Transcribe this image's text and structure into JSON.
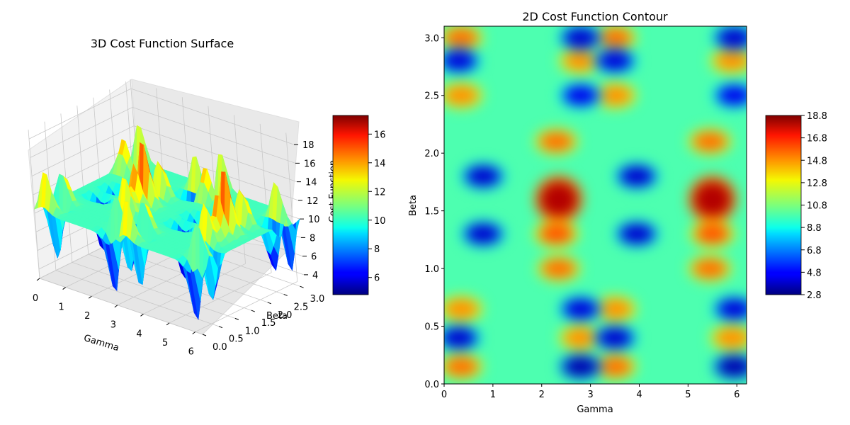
{
  "chart_data": [
    {
      "type": "surface3d",
      "title": "3D Cost Function Surface",
      "xlabel": "Gamma",
      "ylabel": "Beta",
      "zlabel": "Cost Function",
      "xlim": [
        0,
        6.28
      ],
      "ylim": [
        0,
        3.14
      ],
      "zlim": [
        3,
        19
      ],
      "x_ticks": [
        "0",
        "1",
        "2",
        "3",
        "4",
        "5",
        "6"
      ],
      "y_ticks": [
        "0.0",
        "0.5",
        "1.0",
        "1.5",
        "2.0",
        "2.5",
        "3.0"
      ],
      "z_ticks": [
        "4",
        "6",
        "8",
        "10",
        "12",
        "14",
        "16",
        "18"
      ],
      "colormap": "jet",
      "colorbar": {
        "min": 4.8,
        "max": 17.3,
        "ticks": [
          "6",
          "8",
          "10",
          "12",
          "14",
          "16"
        ]
      }
    },
    {
      "type": "heatmap",
      "title": "2D Cost Function Contour",
      "xlabel": "Gamma",
      "ylabel": "Beta",
      "xlim": [
        0,
        6.2
      ],
      "ylim": [
        0,
        3.1
      ],
      "x_ticks": [
        "0",
        "1",
        "2",
        "3",
        "4",
        "5",
        "6"
      ],
      "y_ticks": [
        "0.0",
        "0.5",
        "1.0",
        "1.5",
        "2.0",
        "2.5",
        "3.0"
      ],
      "colormap": "jet",
      "colorbar": {
        "min": 2.8,
        "max": 18.8,
        "ticks": [
          "2.8",
          "4.8",
          "6.8",
          "8.8",
          "10.8",
          "12.8",
          "14.8",
          "16.8",
          "18.8"
        ]
      },
      "features": [
        {
          "kind": "max",
          "gamma": 2.35,
          "beta": 1.6,
          "value": 18.0
        },
        {
          "kind": "max",
          "gamma": 5.5,
          "beta": 1.6,
          "value": 18.0
        },
        {
          "kind": "max",
          "gamma": 2.3,
          "beta": 1.3,
          "value": 15.5
        },
        {
          "kind": "max",
          "gamma": 5.5,
          "beta": 1.3,
          "value": 15.5
        },
        {
          "kind": "max",
          "gamma": 2.3,
          "beta": 2.1,
          "value": 15.0
        },
        {
          "kind": "max",
          "gamma": 5.45,
          "beta": 2.1,
          "value": 15.0
        },
        {
          "kind": "max",
          "gamma": 2.35,
          "beta": 1.0,
          "value": 15.0
        },
        {
          "kind": "max",
          "gamma": 5.45,
          "beta": 1.0,
          "value": 15.0
        },
        {
          "kind": "max",
          "gamma": 0.35,
          "beta": 3.0,
          "value": 15.0
        },
        {
          "kind": "max",
          "gamma": 3.5,
          "beta": 3.0,
          "value": 15.0
        },
        {
          "kind": "max",
          "gamma": 0.35,
          "beta": 2.5,
          "value": 14.5
        },
        {
          "kind": "max",
          "gamma": 3.5,
          "beta": 2.5,
          "value": 14.5
        },
        {
          "kind": "max",
          "gamma": 0.35,
          "beta": 0.65,
          "value": 14.5
        },
        {
          "kind": "max",
          "gamma": 3.5,
          "beta": 0.65,
          "value": 14.5
        },
        {
          "kind": "max",
          "gamma": 0.35,
          "beta": 0.15,
          "value": 15.0
        },
        {
          "kind": "max",
          "gamma": 3.5,
          "beta": 0.15,
          "value": 15.0
        },
        {
          "kind": "max",
          "gamma": 2.8,
          "beta": 2.8,
          "value": 14.5
        },
        {
          "kind": "max",
          "gamma": 5.9,
          "beta": 2.8,
          "value": 14.5
        },
        {
          "kind": "max",
          "gamma": 2.8,
          "beta": 0.4,
          "value": 14.5
        },
        {
          "kind": "max",
          "gamma": 5.9,
          "beta": 0.4,
          "value": 14.5
        },
        {
          "kind": "min",
          "gamma": 2.8,
          "beta": 3.0,
          "value": 4.0
        },
        {
          "kind": "min",
          "gamma": 5.95,
          "beta": 3.0,
          "value": 4.0
        },
        {
          "kind": "min",
          "gamma": 0.3,
          "beta": 2.8,
          "value": 4.2
        },
        {
          "kind": "min",
          "gamma": 3.5,
          "beta": 2.8,
          "value": 4.2
        },
        {
          "kind": "min",
          "gamma": 2.8,
          "beta": 2.5,
          "value": 4.5
        },
        {
          "kind": "min",
          "gamma": 5.95,
          "beta": 2.5,
          "value": 4.5
        },
        {
          "kind": "min",
          "gamma": 0.8,
          "beta": 1.8,
          "value": 4.0
        },
        {
          "kind": "min",
          "gamma": 3.95,
          "beta": 1.8,
          "value": 4.0
        },
        {
          "kind": "min",
          "gamma": 0.8,
          "beta": 1.3,
          "value": 4.0
        },
        {
          "kind": "min",
          "gamma": 3.95,
          "beta": 1.3,
          "value": 4.0
        },
        {
          "kind": "min",
          "gamma": 2.8,
          "beta": 0.65,
          "value": 4.2
        },
        {
          "kind": "min",
          "gamma": 5.95,
          "beta": 0.65,
          "value": 4.2
        },
        {
          "kind": "min",
          "gamma": 0.3,
          "beta": 0.4,
          "value": 4.0
        },
        {
          "kind": "min",
          "gamma": 3.5,
          "beta": 0.4,
          "value": 4.0
        },
        {
          "kind": "min",
          "gamma": 2.8,
          "beta": 0.15,
          "value": 3.5
        },
        {
          "kind": "min",
          "gamma": 5.95,
          "beta": 0.15,
          "value": 3.5
        }
      ]
    }
  ]
}
